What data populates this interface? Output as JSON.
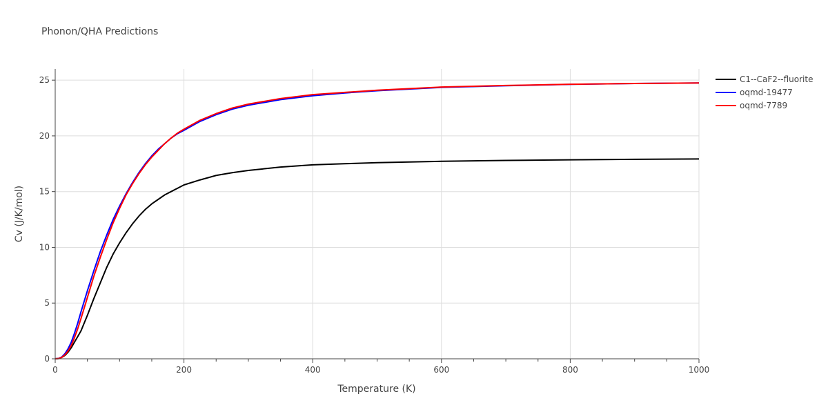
{
  "chart_data": {
    "type": "line",
    "title": "Phonon/QHA Predictions",
    "xlabel": "Temperature (K)",
    "ylabel": "Cv (J/K/mol)",
    "xlim": [
      0,
      1000
    ],
    "ylim": [
      0,
      26
    ],
    "xticks": [
      0,
      200,
      400,
      600,
      800,
      1000
    ],
    "yticks": [
      0,
      5,
      10,
      15,
      20,
      25
    ],
    "grid": true,
    "legend": "top-right",
    "series": [
      {
        "name": "C1--CaF2--fluorite",
        "color": "#000000",
        "x": [
          0,
          5,
          10,
          15,
          20,
          25,
          30,
          35,
          40,
          50,
          60,
          70,
          80,
          90,
          100,
          110,
          120,
          130,
          140,
          150,
          160,
          170,
          180,
          190,
          200,
          225,
          250,
          275,
          300,
          350,
          400,
          450,
          500,
          600,
          700,
          800,
          900,
          1000
        ],
        "y": [
          0,
          0.02,
          0.12,
          0.3,
          0.6,
          1.0,
          1.5,
          2.0,
          2.5,
          3.9,
          5.4,
          6.8,
          8.2,
          9.4,
          10.4,
          11.3,
          12.1,
          12.8,
          13.4,
          13.9,
          14.3,
          14.7,
          15.0,
          15.3,
          15.6,
          16.05,
          16.45,
          16.7,
          16.9,
          17.2,
          17.4,
          17.5,
          17.6,
          17.72,
          17.8,
          17.85,
          17.9,
          17.93
        ]
      },
      {
        "name": "oqmd-19477",
        "color": "#0000ff",
        "x": [
          0,
          5,
          10,
          15,
          20,
          25,
          30,
          35,
          40,
          50,
          60,
          70,
          80,
          90,
          100,
          110,
          120,
          130,
          140,
          150,
          160,
          170,
          180,
          190,
          200,
          225,
          250,
          275,
          300,
          350,
          400,
          450,
          500,
          600,
          700,
          800,
          900,
          1000
        ],
        "y": [
          0,
          0.03,
          0.15,
          0.45,
          0.9,
          1.5,
          2.3,
          3.2,
          4.2,
          6.1,
          7.9,
          9.6,
          11.1,
          12.5,
          13.7,
          14.8,
          15.8,
          16.7,
          17.5,
          18.2,
          18.8,
          19.3,
          19.8,
          20.2,
          20.5,
          21.3,
          21.9,
          22.4,
          22.75,
          23.25,
          23.6,
          23.85,
          24.05,
          24.35,
          24.5,
          24.62,
          24.7,
          24.75
        ]
      },
      {
        "name": "oqmd-7789",
        "color": "#ff0000",
        "x": [
          0,
          5,
          10,
          15,
          20,
          25,
          30,
          35,
          40,
          50,
          60,
          70,
          80,
          90,
          100,
          110,
          120,
          130,
          140,
          150,
          160,
          170,
          180,
          190,
          200,
          225,
          250,
          275,
          300,
          350,
          400,
          450,
          500,
          600,
          700,
          800,
          900,
          1000
        ],
        "y": [
          0,
          0.02,
          0.12,
          0.35,
          0.7,
          1.2,
          1.9,
          2.7,
          3.6,
          5.5,
          7.4,
          9.1,
          10.7,
          12.2,
          13.5,
          14.7,
          15.7,
          16.6,
          17.4,
          18.1,
          18.7,
          19.3,
          19.8,
          20.25,
          20.6,
          21.4,
          22.0,
          22.5,
          22.85,
          23.35,
          23.7,
          23.9,
          24.1,
          24.38,
          24.52,
          24.63,
          24.7,
          24.75
        ]
      }
    ]
  }
}
